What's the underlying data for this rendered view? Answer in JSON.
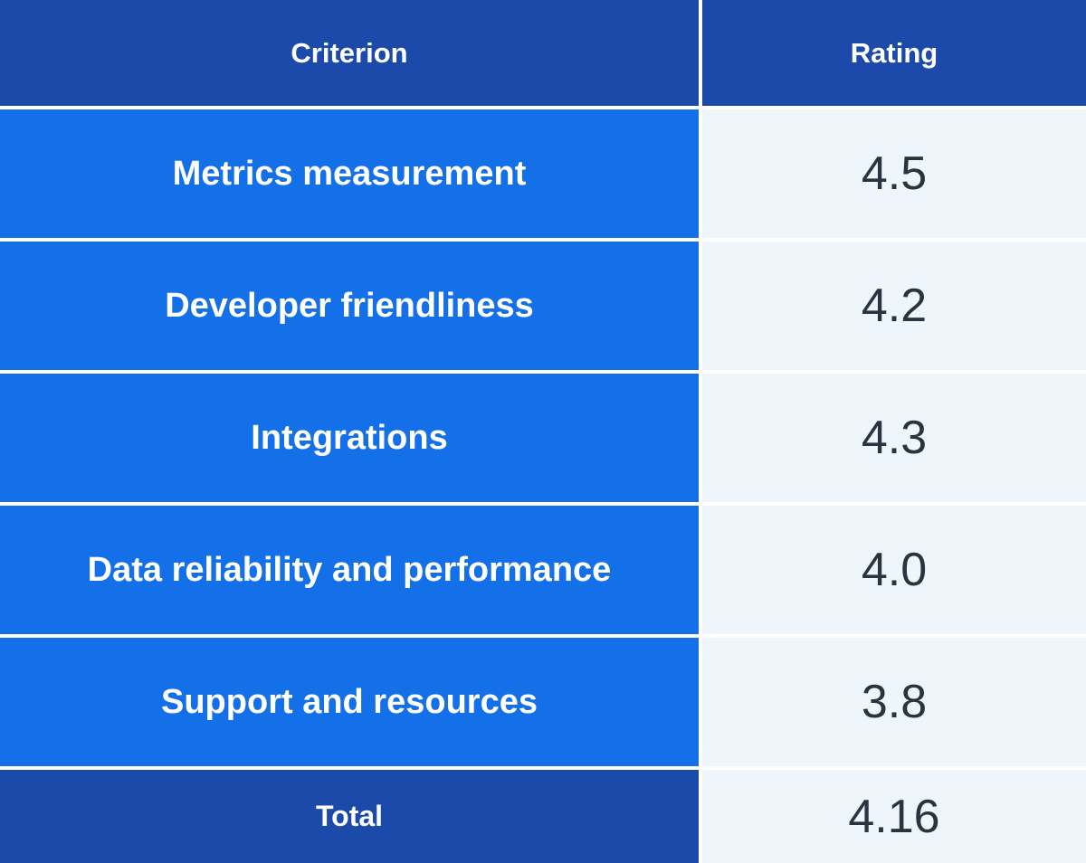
{
  "chart_data": {
    "type": "table",
    "columns": [
      "Criterion",
      "Rating"
    ],
    "rows": [
      {
        "criterion": "Metrics measurement",
        "rating": "4.5"
      },
      {
        "criterion": "Developer friendliness",
        "rating": "4.2"
      },
      {
        "criterion": "Integrations",
        "rating": "4.3"
      },
      {
        "criterion": "Data reliability and performance",
        "rating": "4.0"
      },
      {
        "criterion": "Support and resources",
        "rating": "3.8"
      }
    ],
    "total": {
      "label": "Total",
      "rating": "4.16"
    },
    "colors": {
      "header_bg": "#1b4aab",
      "criterion_bg": "#1470e8",
      "rating_bg": "#eef6fc",
      "rating_text": "#2a3441",
      "header_text": "#ffffff"
    }
  }
}
